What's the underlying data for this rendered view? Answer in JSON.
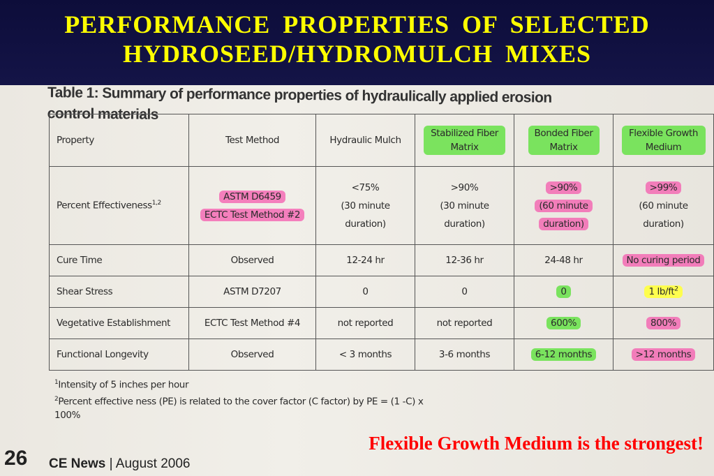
{
  "slide": {
    "title_line1": "PERFORMANCE  PROPERTIES  OF  SELECTED",
    "title_line2": "HYDROSEED/HYDROMULCH  MIXES",
    "conclusion": "Flexible Growth Medium is the strongest!"
  },
  "table": {
    "caption": "Table 1: Summary of performance properties of hydraulically applied erosion control materials",
    "headers": [
      "Property",
      "Test Method",
      "Hydraulic Mulch",
      "Stabilized Fiber Matrix",
      "Bonded Fiber Matrix",
      "Flexible Growth Medium"
    ],
    "rows": [
      {
        "property": "Percent Effectiveness",
        "property_sup": "1,2",
        "method_line1": "ASTM D6459",
        "method_line2": "ECTC Test Method #2",
        "hm_line1": "<75%",
        "hm_line2": "(30 minute",
        "hm_line3": "duration)",
        "sfm_line1": ">90%",
        "sfm_line2": "(30 minute",
        "sfm_line3": "duration)",
        "bfm_line1": ">90%",
        "bfm_line2": "(60 minute",
        "bfm_line3": "duration)",
        "fgm_line1": ">99%",
        "fgm_line2": "(60 minute",
        "fgm_line3": "duration)"
      },
      {
        "property": "Cure Time",
        "method": "Observed",
        "hm": "12-24 hr",
        "sfm": "12-36 hr",
        "bfm": "24-48 hr",
        "fgm": "No curing period"
      },
      {
        "property": "Shear Stress",
        "method": "ASTM D7207",
        "hm": "0",
        "sfm": "0",
        "bfm": "0",
        "fgm": "1 lb/ft",
        "fgm_sup": "2"
      },
      {
        "property": "Vegetative Establishment",
        "method": "ECTC Test Method #4",
        "hm": "not reported",
        "sfm": "not reported",
        "bfm": "600%",
        "fgm": "800%"
      },
      {
        "property": "Functional Longevity",
        "method": "Observed",
        "hm": "< 3 months",
        "sfm": "3-6 months",
        "bfm": "6-12 months",
        "fgm": ">12 months"
      }
    ]
  },
  "footnotes": {
    "note1_mark": "1",
    "note1": "Intensity of 5 inches per hour",
    "note2_mark": "2",
    "note2": "Percent effective ness (PE) is related to the cover factor (C factor) by PE = (1 -C) x 100%"
  },
  "footer": {
    "page_number": "26",
    "publication": "CE News",
    "issue": "August 2006"
  },
  "colors": {
    "title_background": "#141447",
    "title_text": "#ffff00",
    "conclusion_text": "#ff0000",
    "highlight_green": "#66e246",
    "highlight_pink": "#f550aa",
    "highlight_yellow": "#ffff46"
  }
}
